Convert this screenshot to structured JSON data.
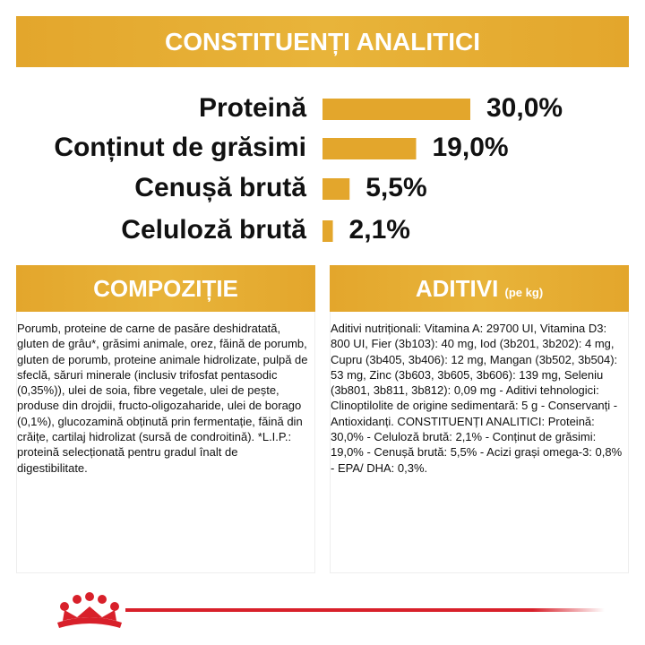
{
  "header": {
    "title": "CONSTITUENȚI ANALITICI"
  },
  "analytics": [
    {
      "label": "Proteină",
      "value": 30.0,
      "value_label": "30,0%"
    },
    {
      "label": "Conținut de grăsimi",
      "value": 19.0,
      "value_label": "19,0%"
    },
    {
      "label": "Cenușă brută",
      "value": 5.5,
      "value_label": "5,5%"
    },
    {
      "label": "Celuloză brută",
      "value": 2.1,
      "value_label": "2,1%"
    }
  ],
  "composition": {
    "title": "COMPOZIȚIE",
    "text": "Porumb, proteine de carne de pasăre deshidratată, gluten de grâu*, grăsimi animale, orez, făină de porumb, gluten de porumb, proteine animale hidrolizate, pulpă de sfeclă, săruri minerale (inclusiv trifosfat pentasodic (0,35%)), ulei de soia, fibre vegetale, ulei de pește, produse din drojdii, fructo-oligozaharide, ulei de borago (0,1%), glucozamină obținută prin fermentație, făină din crăițe, cartilaj hidrolizat (sursă de condroitină). *L.I.P.: proteină selecționată pentru gradul înalt de digestibilitate."
  },
  "additives": {
    "title": "ADITIVI",
    "subtitle": "(pe kg)",
    "text": "Aditivi nutriționali: Vitamina A: 29700 UI, Vitamina D3: 800 UI, Fier (3b103): 40 mg, Iod (3b201, 3b202): 4 mg, Cupru (3b405, 3b406): 12 mg, Mangan (3b502, 3b504): 53 mg, Zinc (3b603, 3b605, 3b606): 139 mg, Seleniu (3b801, 3b811, 3b812): 0,09 mg - Aditivi tehnologici: Clinoptilolite de origine sedimentară: 5 g - Conservanți - Antioxidanți. CONSTITUENȚI ANALITICI: Proteină: 30,0% - Celuloză brută: 2,1% - Conținut de grăsimi: 19,0% - Cenușă brută: 5,5% - Acizi grași omega-3: 0,8% - EPA/ DHA: 0,3%."
  }
}
